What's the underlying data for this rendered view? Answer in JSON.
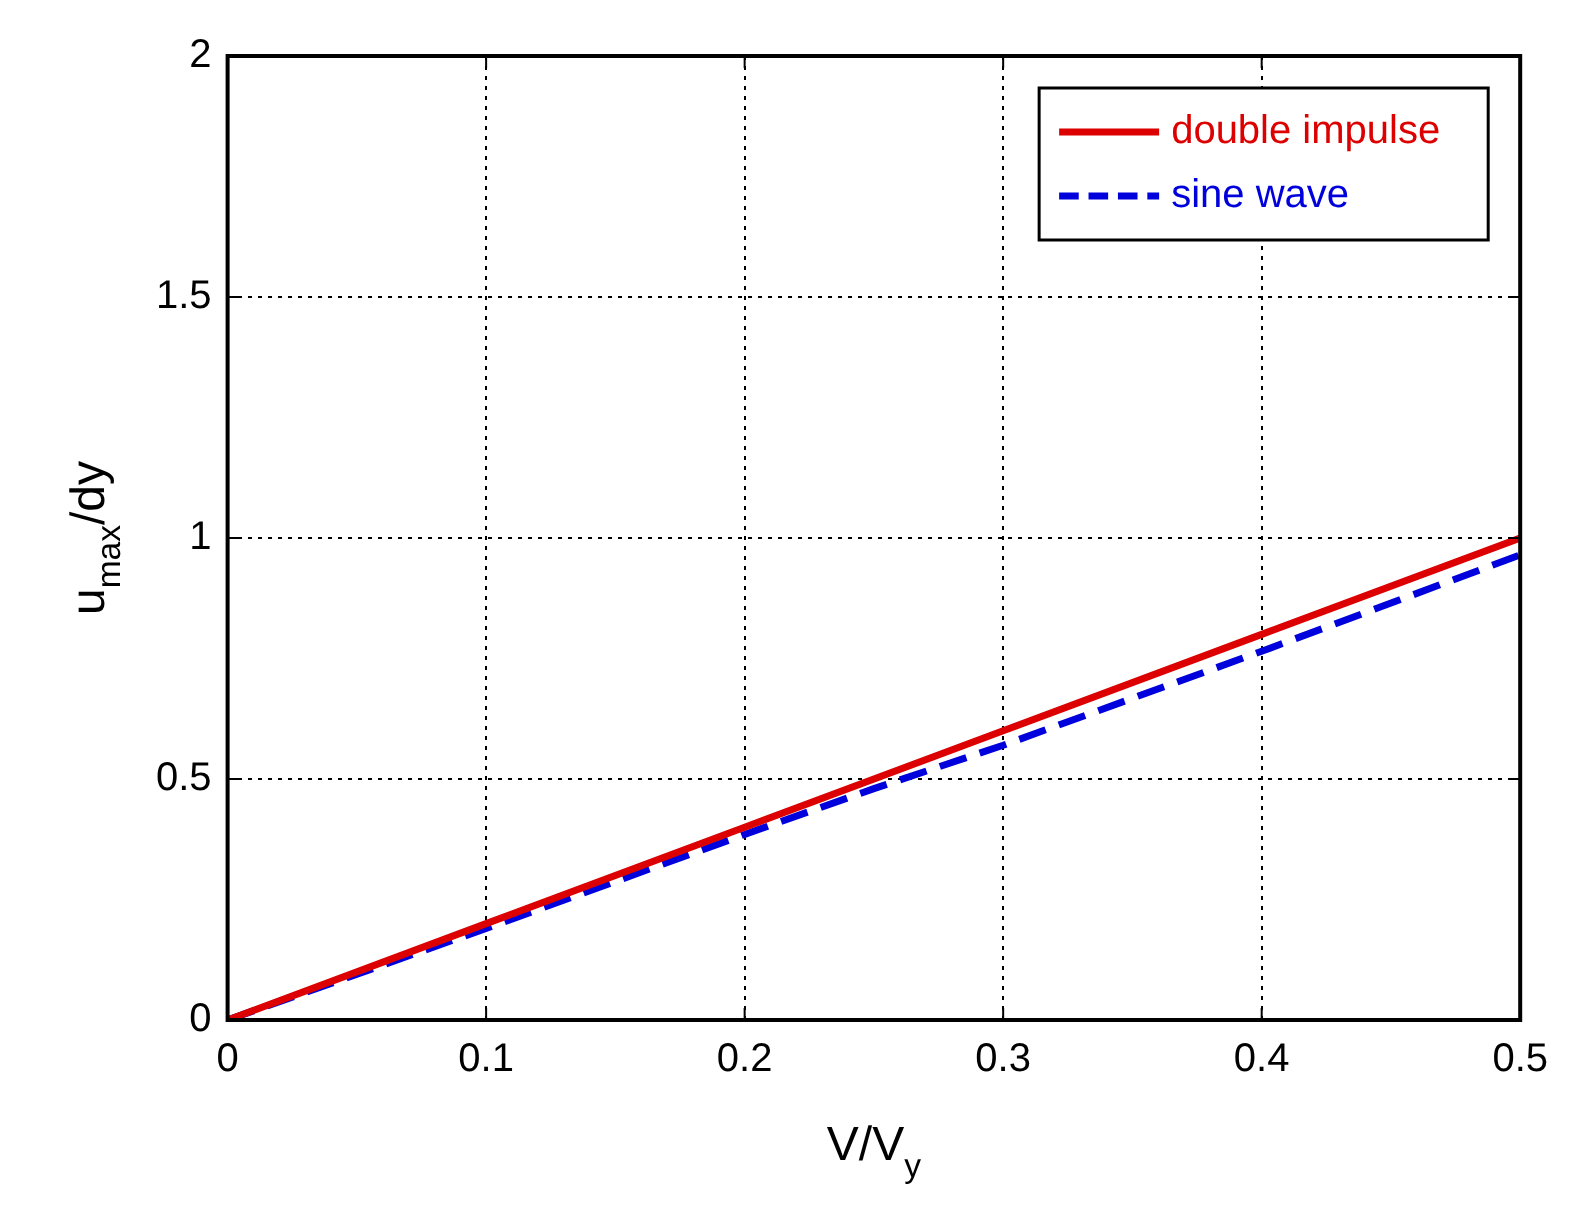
{
  "chart_data": {
    "type": "line",
    "xlabel": "V/V$_{y}$",
    "ylabel": "u$_{max}$/dy",
    "xlim": [
      0,
      0.5
    ],
    "ylim": [
      0,
      2
    ],
    "xticks": [
      0,
      0.1,
      0.2,
      0.3,
      0.4,
      0.5
    ],
    "yticks": [
      0,
      0.5,
      1,
      1.5,
      2
    ],
    "grid": true,
    "legend": "top right",
    "marker": "none",
    "series": [
      {
        "name": "double impulse",
        "color": "#dd0000",
        "line_style": "solid",
        "x": [
          0,
          0.1,
          0.2,
          0.3,
          0.4,
          0.5
        ],
        "values": [
          0,
          0.2,
          0.4,
          0.6,
          0.8,
          1
        ]
      },
      {
        "name": "sine wave",
        "color": "#0000dd",
        "line_style": "dashed",
        "x": [
          0,
          0.1,
          0.2,
          0.25,
          0.3,
          0.4,
          0.5
        ],
        "values": [
          0,
          0.19,
          0.385,
          0.48,
          0.57,
          0.765,
          0.965
        ]
      }
    ]
  }
}
